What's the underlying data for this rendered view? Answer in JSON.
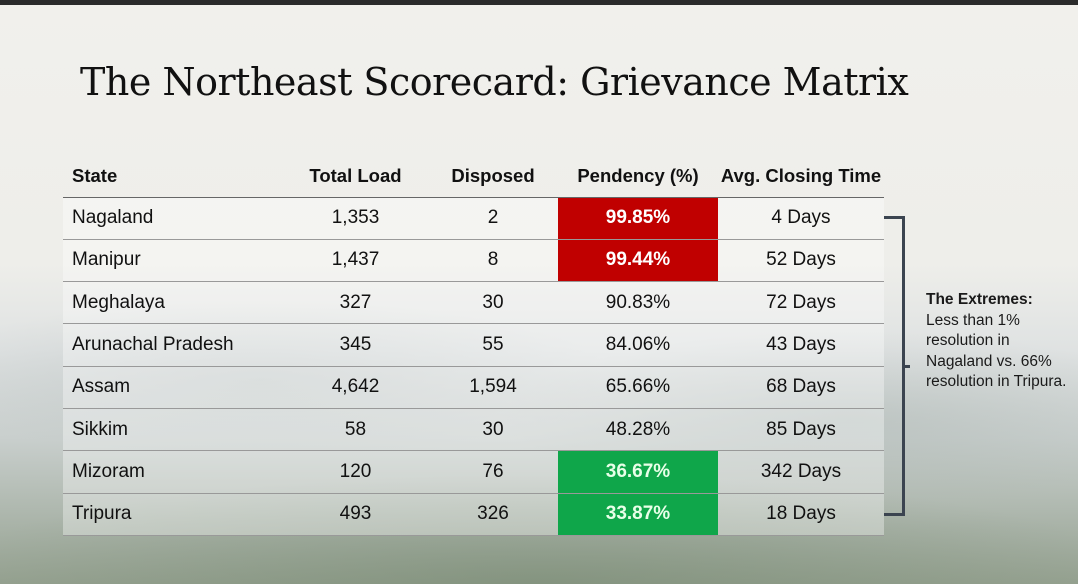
{
  "title": "The Northeast Scorecard: Grievance Matrix",
  "table": {
    "headers": [
      "State",
      "Total Load",
      "Disposed",
      "Pendency (%)",
      "Avg. Closing Time"
    ],
    "rows": [
      {
        "state": "Nagaland",
        "total": "1,353",
        "disposed": "2",
        "pendency": "99.85%",
        "closing": "4 Days",
        "highlight": "red"
      },
      {
        "state": "Manipur",
        "total": "1,437",
        "disposed": "8",
        "pendency": "99.44%",
        "closing": "52 Days",
        "highlight": "red"
      },
      {
        "state": "Meghalaya",
        "total": "327",
        "disposed": "30",
        "pendency": "90.83%",
        "closing": "72 Days",
        "highlight": ""
      },
      {
        "state": "Arunachal Pradesh",
        "total": "345",
        "disposed": "55",
        "pendency": "84.06%",
        "closing": "43 Days",
        "highlight": ""
      },
      {
        "state": "Assam",
        "total": "4,642",
        "disposed": "1,594",
        "pendency": "65.66%",
        "closing": "68 Days",
        "highlight": ""
      },
      {
        "state": "Sikkim",
        "total": "58",
        "disposed": "30",
        "pendency": "48.28%",
        "closing": "85 Days",
        "highlight": ""
      },
      {
        "state": "Mizoram",
        "total": "120",
        "disposed": "76",
        "pendency": "36.67%",
        "closing": "342 Days",
        "highlight": "green"
      },
      {
        "state": "Tripura",
        "total": "493",
        "disposed": "326",
        "pendency": "33.87%",
        "closing": "18 Days",
        "highlight": "green"
      }
    ]
  },
  "annotation": {
    "heading": "The Extremes:",
    "body": "Less than 1% resolution in Nagaland vs. 66% resolution in Tripura."
  },
  "colors": {
    "high_pendency": "#c00000",
    "low_pendency": "#0fa64a",
    "bracket": "#3b4450"
  }
}
